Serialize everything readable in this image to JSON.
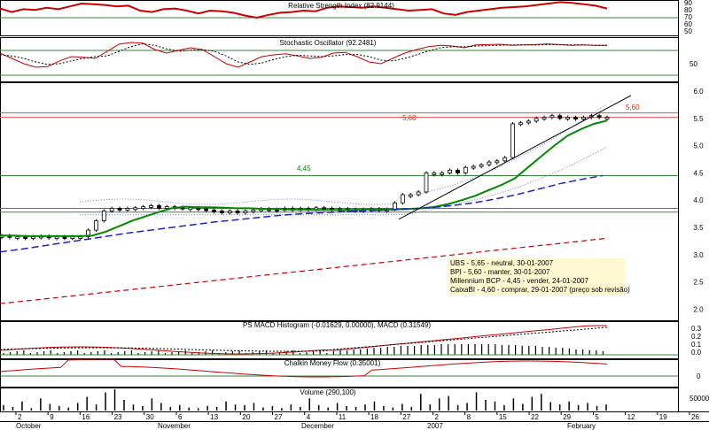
{
  "chart_data": {
    "type": "candlestick",
    "panels": {
      "rsi": {
        "title": "Relative Strength Index (82.9144)",
        "yticks": [
          "90",
          "80",
          "70",
          "60",
          "50"
        ],
        "values": [
          83,
          78,
          82,
          81,
          84,
          82,
          86,
          90,
          89,
          88,
          86,
          87,
          80,
          78,
          82,
          83,
          80,
          76,
          80,
          79,
          77,
          73,
          70,
          74,
          77,
          78,
          80,
          79,
          84,
          86,
          85,
          84,
          86,
          84,
          82,
          80,
          81,
          82,
          76,
          74,
          78,
          80,
          82,
          84,
          85,
          86,
          88,
          90,
          92,
          91,
          89,
          87,
          83
        ]
      },
      "stoch": {
        "title": "Stochastic Oscillator (92.2481)",
        "ytick": "50",
        "k": [
          70,
          55,
          40,
          30,
          32,
          48,
          60,
          58,
          55,
          75,
          95,
          100,
          98,
          80,
          70,
          78,
          85,
          80,
          60,
          40,
          30,
          45,
          60,
          65,
          68,
          62,
          55,
          58,
          70,
          72,
          60,
          45,
          40,
          55,
          70,
          80,
          88,
          92,
          90,
          85,
          93,
          94,
          95,
          92,
          93,
          94,
          96,
          94,
          92,
          93,
          92,
          92
        ],
        "d": [
          65,
          62,
          55,
          45,
          38,
          40,
          48,
          55,
          60,
          62,
          75,
          88,
          96,
          92,
          82,
          75,
          78,
          80,
          75,
          62,
          45,
          38,
          42,
          52,
          60,
          64,
          62,
          60,
          62,
          66,
          66,
          60,
          50,
          48,
          55,
          65,
          76,
          85,
          88,
          88,
          90,
          91,
          92,
          93,
          93,
          93,
          94,
          94,
          93,
          93,
          92,
          92
        ]
      },
      "price": {
        "yticks": [
          "6.0",
          "5.5",
          "5.0",
          "4.5",
          "4.0",
          "3.5",
          "3.0",
          "2.5",
          "2.0"
        ],
        "ylim": [
          1.8,
          6.25
        ],
        "candles": [
          3.35,
          3.33,
          3.33,
          3.32,
          3.33,
          3.34,
          3.33,
          3.33,
          3.32,
          3.33,
          3.33,
          3.45,
          3.62,
          3.8,
          3.85,
          3.82,
          3.85,
          3.86,
          3.88,
          3.9,
          3.85,
          3.88,
          3.87,
          3.85,
          3.86,
          3.84,
          3.82,
          3.8,
          3.78,
          3.8,
          3.79,
          3.8,
          3.82,
          3.84,
          3.83,
          3.82,
          3.85,
          3.83,
          3.85,
          3.84,
          3.86,
          3.85,
          3.83,
          3.84,
          3.83,
          3.82,
          3.83,
          3.84,
          3.82,
          3.83,
          3.95,
          4.1,
          4.1,
          4.15,
          4.5,
          4.5,
          4.5,
          4.55,
          4.5,
          4.6,
          4.62,
          4.65,
          4.7,
          4.72,
          4.78,
          5.4,
          5.42,
          5.45,
          5.5,
          5.52,
          5.55,
          5.5,
          5.52,
          5.5,
          5.52,
          5.55,
          5.52,
          5.52
        ],
        "ma_short": [
          3.35,
          3.35,
          3.34,
          3.34,
          3.34,
          3.34,
          3.34,
          3.35,
          3.42,
          3.52,
          3.62,
          3.7,
          3.78,
          3.85,
          3.88,
          3.87,
          3.87,
          3.86,
          3.85,
          3.85,
          3.84,
          3.84,
          3.83,
          3.83,
          3.82,
          3.82,
          3.82,
          3.82,
          3.83,
          3.83,
          3.83,
          3.84,
          3.85,
          3.88,
          3.93,
          4.0,
          4.08,
          4.18,
          4.28,
          4.4,
          4.6,
          4.8,
          5.0,
          5.18,
          5.3,
          5.4,
          5.46
        ],
        "ma_mid": [
          3.05,
          3.1,
          3.16,
          3.22,
          3.28,
          3.34,
          3.4,
          3.45,
          3.5,
          3.55,
          3.6,
          3.64,
          3.68,
          3.72,
          3.75,
          3.77,
          3.79,
          3.8,
          3.82,
          3.84,
          3.86,
          3.9,
          3.95,
          4.02,
          4.1,
          4.2,
          4.3,
          4.38,
          4.45
        ],
        "ma_long": [
          2.1,
          2.2,
          2.3,
          2.4,
          2.5,
          2.6,
          2.7,
          2.8,
          2.9,
          3.0,
          3.1,
          3.2,
          3.3
        ],
        "h_red": 5.6,
        "h_red_label": "5,60",
        "h_red_label2": "5,60",
        "h_green": 4.45,
        "h_green_label": "4,45",
        "h_green2": 3.85,
        "h_green3": 3.78
      },
      "macd": {
        "title": "PS MACD Histogram (-0.01629, 0.00000), MACD (0.31549)",
        "yticks": [
          "0.3",
          "0.2",
          "0.1",
          "0.0"
        ]
      },
      "cmf": {
        "title": "Chalkin Money Flow (0.35001)",
        "ytick": "0"
      },
      "volume": {
        "title": "Volume (290,100)",
        "ytick": "50000",
        "values": [
          18,
          12,
          30,
          8,
          40,
          22,
          15,
          10,
          25,
          45,
          20,
          60,
          70,
          35,
          20,
          15,
          40,
          25,
          12,
          18,
          10,
          8,
          15,
          12,
          30,
          20,
          18,
          25,
          10,
          15,
          8,
          20,
          12,
          40,
          18,
          10,
          25,
          15,
          12,
          20,
          30,
          15,
          10,
          22,
          12,
          55,
          20,
          40,
          48,
          18,
          25,
          60,
          35,
          30,
          18,
          40,
          22,
          45,
          55,
          28,
          20,
          30,
          18,
          25,
          15,
          20
        ]
      }
    },
    "annotations": [
      "UBS - 5,65 - neutral, 30-01-2007",
      "BPI - 5,60 - manter, 30-01-2007",
      "Millennium BCP - 4,45 - vender, 24-01-2007",
      "CaixaBI - 4,60 - comprar, 29-01-2007 (preço sob revisão)"
    ],
    "x_ticks": [
      "2",
      "9",
      "16",
      "23",
      "30",
      "6",
      "13",
      "20",
      "27",
      "4",
      "11",
      "18",
      "27",
      "2",
      "8",
      "15",
      "22",
      "29",
      "5",
      "12",
      "19",
      "26"
    ],
    "x_months": [
      "October",
      "November",
      "December",
      "2007",
      "February"
    ],
    "colors": {
      "green": "#008800",
      "red": "#cc0000",
      "blue": "#2222cc",
      "hline_green": "#3a8a3a",
      "hline_red": "#e05050",
      "note_bg": "#fff8d0"
    }
  }
}
